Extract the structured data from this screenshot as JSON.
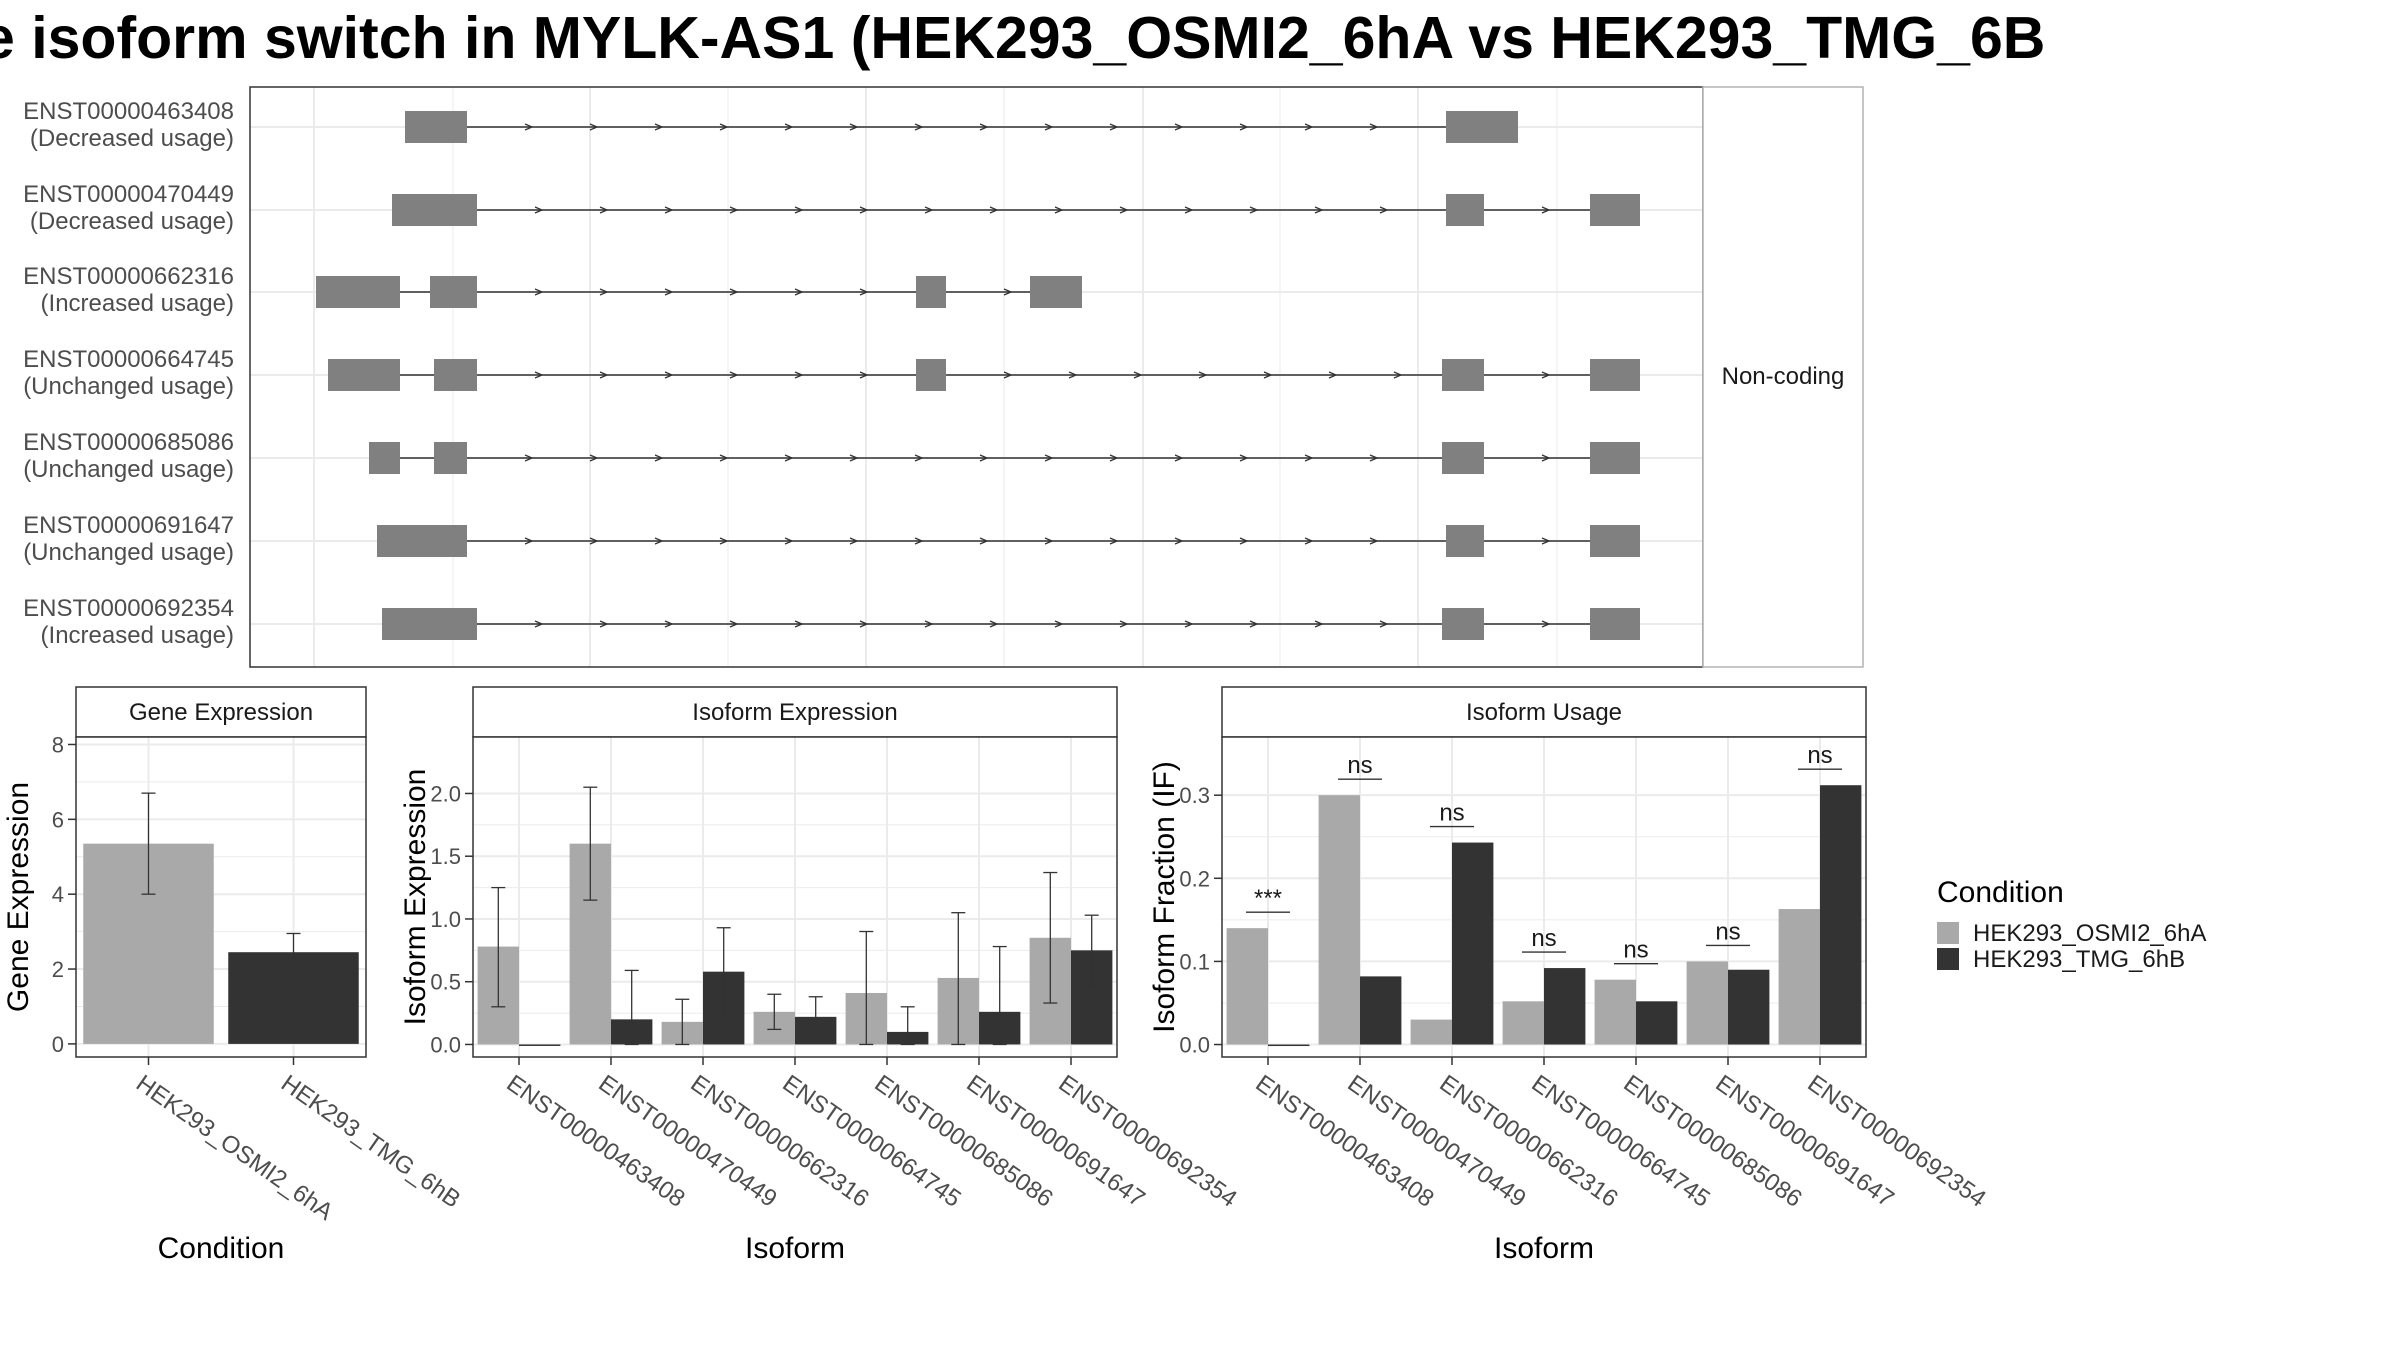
{
  "title": "e isoform switch in MYLK-AS1 (HEK293_OSMI2_6hA vs HEK293_TMG_6B",
  "colors": {
    "osmi": "#a9a9a9",
    "tmg": "#333333",
    "exon": "#808080",
    "grid": "#ebebeb",
    "frame": "#333333"
  },
  "chart_data": [
    {
      "type": "gene-structure",
      "facet_label": "Non-coding",
      "transcripts": [
        {
          "id": "ENST00000463408",
          "status": "(Decreased usage)"
        },
        {
          "id": "ENST00000470449",
          "status": "(Decreased usage)"
        },
        {
          "id": "ENST00000662316",
          "status": "(Increased usage)"
        },
        {
          "id": "ENST00000664745",
          "status": "(Unchanged usage)"
        },
        {
          "id": "ENST00000685086",
          "status": "(Unchanged usage)"
        },
        {
          "id": "ENST00000691647",
          "status": "(Unchanged usage)"
        },
        {
          "id": "ENST00000692354",
          "status": "(Increased usage)"
        }
      ]
    },
    {
      "type": "bar",
      "panel_title": "Gene Expression",
      "xlabel": "Condition",
      "ylabel": "Gene Expression",
      "categories": [
        "HEK293_OSMI2_6hA",
        "HEK293_TMG_6hB"
      ],
      "values": [
        5.35,
        2.45
      ],
      "err_low": [
        4.0,
        1.95
      ],
      "err_high": [
        6.7,
        2.95
      ],
      "ylim": [
        -0.35,
        8.2
      ],
      "yticks": [
        "0",
        "2",
        "4",
        "6",
        "8"
      ],
      "grid": true
    },
    {
      "type": "bar",
      "panel_title": "Isoform Expression",
      "xlabel": "Isoform",
      "ylabel": "Isoform Expression",
      "categories": [
        "ENST00000463408",
        "ENST00000470449",
        "ENST00000662316",
        "ENST00000664745",
        "ENST00000685086",
        "ENST00000691647",
        "ENST00000692354"
      ],
      "series": [
        {
          "name": "HEK293_OSMI2_6hA",
          "values": [
            0.78,
            1.6,
            0.18,
            0.26,
            0.41,
            0.53,
            0.85
          ],
          "err_low": [
            0.3,
            1.15,
            0.0,
            0.12,
            0.0,
            0.0,
            0.33
          ],
          "err_high": [
            1.25,
            2.05,
            0.36,
            0.4,
            0.9,
            1.05,
            1.37
          ]
        },
        {
          "name": "HEK293_TMG_6hB",
          "values": [
            0.0,
            0.2,
            0.58,
            0.22,
            0.1,
            0.26,
            0.75
          ],
          "err_low": [
            0.0,
            0.0,
            0.22,
            0.06,
            0.0,
            0.0,
            0.47
          ],
          "err_high": [
            0.0,
            0.59,
            0.93,
            0.38,
            0.3,
            0.78,
            1.03
          ]
        }
      ],
      "ylim": [
        -0.1,
        2.45
      ],
      "yticks": [
        "0.0",
        "0.5",
        "1.0",
        "1.5",
        "2.0"
      ],
      "grid": true
    },
    {
      "type": "bar",
      "panel_title": "Isoform Usage",
      "xlabel": "Isoform",
      "ylabel": "Isoform Fraction (IF)",
      "categories": [
        "ENST00000463408",
        "ENST00000470449",
        "ENST00000662316",
        "ENST00000664745",
        "ENST00000685086",
        "ENST00000691647",
        "ENST00000692354"
      ],
      "series": [
        {
          "name": "HEK293_OSMI2_6hA",
          "values": [
            0.14,
            0.3,
            0.03,
            0.052,
            0.078,
            0.1,
            0.163
          ]
        },
        {
          "name": "HEK293_TMG_6hB",
          "values": [
            0.0,
            0.082,
            0.243,
            0.092,
            0.052,
            0.09,
            0.312
          ]
        }
      ],
      "significance": [
        "***",
        "ns",
        "ns",
        "ns",
        "ns",
        "ns",
        "ns"
      ],
      "ylim": [
        -0.015,
        0.37
      ],
      "yticks": [
        "0.0",
        "0.1",
        "0.2",
        "0.3"
      ],
      "grid": true
    }
  ],
  "legend": {
    "title": "Condition",
    "position": "right",
    "items": [
      "HEK293_OSMI2_6hA",
      "HEK293_TMG_6hB"
    ]
  }
}
